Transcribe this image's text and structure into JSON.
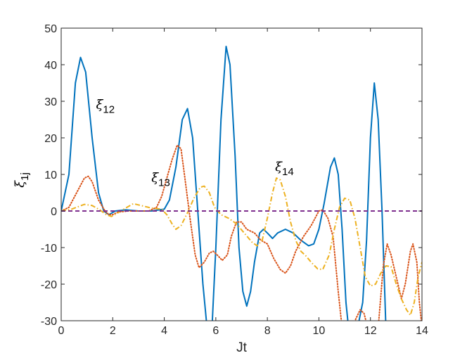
{
  "chart_data": {
    "type": "line",
    "title": "",
    "xlabel": "Jt",
    "ylabel": {
      "base": "ξ",
      "sub": "1j"
    },
    "xlim": [
      0,
      14
    ],
    "ylim": [
      -30,
      50
    ],
    "xticks": [
      0,
      2,
      4,
      6,
      8,
      10,
      12,
      14
    ],
    "yticks": [
      -30,
      -20,
      -10,
      0,
      10,
      20,
      30,
      40,
      50
    ],
    "grid": false,
    "legend": "none",
    "annotations": [
      {
        "base": "ξ",
        "sub": "12",
        "x": 1.35,
        "y": 28
      },
      {
        "base": "ξ",
        "sub": "13",
        "x": 3.5,
        "y": 8
      },
      {
        "base": "ξ",
        "sub": "14",
        "x": 8.3,
        "y": 11
      }
    ],
    "series": [
      {
        "id": "xi12",
        "color": "#0072BD",
        "dash": "solid",
        "points": [
          [
            0,
            0
          ],
          [
            0.3,
            10
          ],
          [
            0.55,
            35
          ],
          [
            0.75,
            42
          ],
          [
            0.95,
            38
          ],
          [
            1.2,
            20
          ],
          [
            1.45,
            5
          ],
          [
            1.65,
            0
          ],
          [
            1.85,
            -1
          ],
          [
            2.1,
            0
          ],
          [
            2.5,
            0.3
          ],
          [
            3.0,
            0
          ],
          [
            3.5,
            0
          ],
          [
            4.0,
            0.5
          ],
          [
            4.2,
            3
          ],
          [
            4.45,
            12
          ],
          [
            4.7,
            25
          ],
          [
            4.9,
            28
          ],
          [
            5.1,
            20
          ],
          [
            5.3,
            0
          ],
          [
            5.5,
            -20
          ],
          [
            5.7,
            -35
          ],
          [
            5.85,
            -32
          ],
          [
            6.0,
            -10
          ],
          [
            6.2,
            25
          ],
          [
            6.4,
            45
          ],
          [
            6.55,
            40
          ],
          [
            6.75,
            15
          ],
          [
            6.9,
            -10
          ],
          [
            7.05,
            -22
          ],
          [
            7.2,
            -26
          ],
          [
            7.35,
            -22
          ],
          [
            7.5,
            -14
          ],
          [
            7.7,
            -6
          ],
          [
            7.85,
            -5
          ],
          [
            8.0,
            -6
          ],
          [
            8.2,
            -7.5
          ],
          [
            8.4,
            -6
          ],
          [
            8.7,
            -5
          ],
          [
            9.0,
            -6
          ],
          [
            9.3,
            -8
          ],
          [
            9.6,
            -9.5
          ],
          [
            9.8,
            -9
          ],
          [
            10.0,
            -5
          ],
          [
            10.2,
            2
          ],
          [
            10.45,
            12
          ],
          [
            10.6,
            14.5
          ],
          [
            10.75,
            10
          ],
          [
            10.9,
            -5
          ],
          [
            11.05,
            -25
          ],
          [
            11.15,
            -32
          ],
          [
            11.3,
            -36
          ],
          [
            11.5,
            -32
          ],
          [
            11.7,
            -25
          ],
          [
            11.85,
            -8
          ],
          [
            12.0,
            20
          ],
          [
            12.15,
            35
          ],
          [
            12.3,
            25
          ],
          [
            12.45,
            0
          ],
          [
            12.6,
            -32
          ]
        ]
      },
      {
        "id": "xi13",
        "color": "#D95319",
        "dash": "dotted",
        "points": [
          [
            0,
            0
          ],
          [
            0.3,
            1
          ],
          [
            0.6,
            5
          ],
          [
            0.9,
            9
          ],
          [
            1.05,
            9.5
          ],
          [
            1.2,
            8
          ],
          [
            1.45,
            3
          ],
          [
            1.7,
            0
          ],
          [
            1.85,
            -1
          ],
          [
            2.0,
            -1
          ],
          [
            2.2,
            -0.3
          ],
          [
            2.6,
            0
          ],
          [
            3.0,
            0
          ],
          [
            3.4,
            0
          ],
          [
            3.7,
            1
          ],
          [
            3.9,
            4
          ],
          [
            4.1,
            9
          ],
          [
            4.3,
            14
          ],
          [
            4.5,
            18
          ],
          [
            4.65,
            17
          ],
          [
            4.8,
            9
          ],
          [
            5.0,
            -2
          ],
          [
            5.2,
            -12
          ],
          [
            5.35,
            -15.5
          ],
          [
            5.55,
            -14
          ],
          [
            5.75,
            -11.5
          ],
          [
            5.9,
            -11
          ],
          [
            6.05,
            -12
          ],
          [
            6.25,
            -13.5
          ],
          [
            6.45,
            -12
          ],
          [
            6.6,
            -7
          ],
          [
            6.8,
            -3
          ],
          [
            7.0,
            -3
          ],
          [
            7.2,
            -5
          ],
          [
            7.5,
            -6
          ],
          [
            7.75,
            -8
          ],
          [
            8.0,
            -9
          ],
          [
            8.25,
            -13
          ],
          [
            8.5,
            -16
          ],
          [
            8.7,
            -17
          ],
          [
            8.9,
            -15
          ],
          [
            9.1,
            -11
          ],
          [
            9.4,
            -7
          ],
          [
            9.7,
            -4
          ],
          [
            10.0,
            0
          ],
          [
            10.15,
            0.3
          ],
          [
            10.35,
            -2
          ],
          [
            10.55,
            -7
          ],
          [
            10.75,
            -22
          ],
          [
            10.9,
            -32
          ],
          [
            11.0,
            -34
          ],
          [
            11.2,
            -33
          ],
          [
            11.4,
            -30
          ],
          [
            11.6,
            -27
          ],
          [
            11.75,
            -28
          ],
          [
            11.9,
            -32
          ],
          [
            12.1,
            -36
          ],
          [
            12.3,
            -32
          ],
          [
            12.5,
            -15
          ],
          [
            12.65,
            -9
          ],
          [
            12.8,
            -12
          ],
          [
            13.0,
            -18
          ],
          [
            13.2,
            -24
          ],
          [
            13.35,
            -20
          ],
          [
            13.55,
            -11
          ],
          [
            13.65,
            -9
          ],
          [
            13.8,
            -14
          ],
          [
            13.9,
            -25
          ],
          [
            14.0,
            -32
          ]
        ]
      },
      {
        "id": "xi14",
        "color": "#EDB120",
        "dash": "dashdot",
        "points": [
          [
            0,
            0
          ],
          [
            0.4,
            0.5
          ],
          [
            0.9,
            1.8
          ],
          [
            1.2,
            1.5
          ],
          [
            1.5,
            0.3
          ],
          [
            1.75,
            -1
          ],
          [
            1.95,
            -1.5
          ],
          [
            2.2,
            -0.5
          ],
          [
            2.5,
            0.8
          ],
          [
            2.8,
            2
          ],
          [
            3.1,
            1.5
          ],
          [
            3.5,
            0.8
          ],
          [
            3.9,
            0.5
          ],
          [
            4.1,
            -1
          ],
          [
            4.3,
            -3.5
          ],
          [
            4.45,
            -5
          ],
          [
            4.65,
            -4
          ],
          [
            4.9,
            -0.5
          ],
          [
            5.15,
            3.5
          ],
          [
            5.4,
            6.5
          ],
          [
            5.55,
            6.8
          ],
          [
            5.75,
            5
          ],
          [
            5.95,
            1
          ],
          [
            6.2,
            -1
          ],
          [
            6.5,
            -2
          ],
          [
            6.8,
            -3.5
          ],
          [
            7.1,
            -6
          ],
          [
            7.4,
            -8.5
          ],
          [
            7.6,
            -9.5
          ],
          [
            7.8,
            -8
          ],
          [
            8.0,
            -2
          ],
          [
            8.2,
            5
          ],
          [
            8.35,
            9
          ],
          [
            8.5,
            8.5
          ],
          [
            8.7,
            4
          ],
          [
            8.9,
            -3
          ],
          [
            9.1,
            -8
          ],
          [
            9.3,
            -11
          ],
          [
            9.5,
            -12.3
          ],
          [
            9.7,
            -14
          ],
          [
            9.95,
            -15.8
          ],
          [
            10.15,
            -16
          ],
          [
            10.4,
            -12
          ],
          [
            10.6,
            -5
          ],
          [
            10.8,
            1
          ],
          [
            11.0,
            3.5
          ],
          [
            11.2,
            3
          ],
          [
            11.4,
            -2
          ],
          [
            11.6,
            -10
          ],
          [
            11.8,
            -18
          ],
          [
            12.0,
            -20.5
          ],
          [
            12.2,
            -20
          ],
          [
            12.4,
            -17
          ],
          [
            12.6,
            -15
          ],
          [
            12.8,
            -15.2
          ],
          [
            13.0,
            -20
          ],
          [
            13.2,
            -24
          ],
          [
            13.4,
            -27
          ],
          [
            13.55,
            -28.5
          ],
          [
            13.7,
            -25
          ],
          [
            13.85,
            -18
          ],
          [
            14.0,
            -14
          ]
        ]
      },
      {
        "id": "zero",
        "color": "#7E2F8E",
        "dash": "dashed",
        "points": [
          [
            0,
            0
          ],
          [
            14,
            0
          ]
        ]
      }
    ]
  }
}
